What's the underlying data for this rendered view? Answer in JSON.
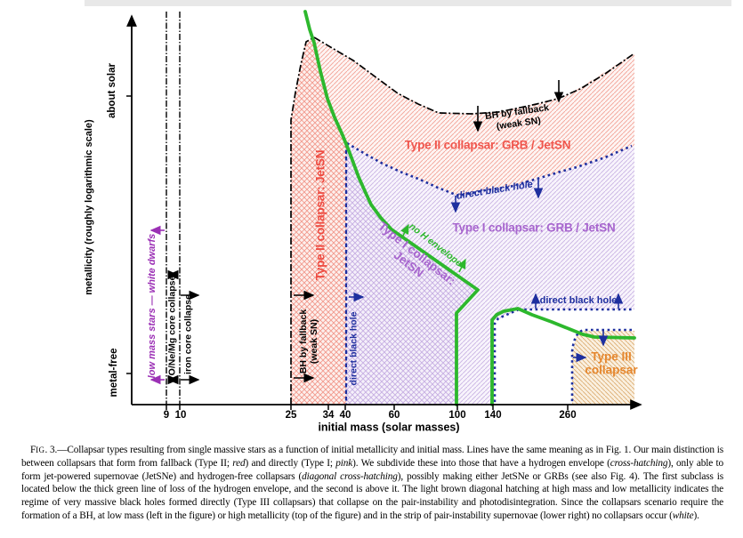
{
  "figure": {
    "x_axis": {
      "label": "initial mass (solar masses)",
      "ticks": [
        "9",
        "10",
        "25",
        "34",
        "40",
        "60",
        "100",
        "140",
        "260"
      ]
    },
    "y_axis": {
      "label": "metallicity (roughly logarithmic scale)",
      "top": "about solar",
      "bottom": "metal-free"
    },
    "labels": {
      "low_mass_stars": "low mass stars — white dwarfs",
      "onemg_core": "O/Ne/Mg core collapse",
      "iron_core": "iron core collapse",
      "bh_fallback_line1": "BH by fallback",
      "bh_fallback_line2": "(weak SN)",
      "type2_jetsn": "Type II collapsar: JetSN",
      "direct_black_hole": "direct black hole",
      "type2_grb_jetsn": "Type II collapsar: GRB / JetSN",
      "type1_grb_jetsn": "Type I collapsar: GRB / JetSN",
      "type1_jetsn_line1": "Type I collapsar:",
      "type1_jetsn_line2": "JetSN",
      "no_h_envelope": "no H envelope",
      "type3_line1": "Type III",
      "type3_line2": "collapsar"
    },
    "colors": {
      "green_line": "#2db82d",
      "blue": "#1e2f9f",
      "red_text": "#ee4b41",
      "red_hatch": "#f2998c",
      "purple_text": "#a765ce",
      "purple_hatch": "#c6aee2",
      "magenta_text": "#9b30b5",
      "tan_hatch": "#dcae72",
      "orange_text": "#e6872e",
      "black": "#000000"
    }
  },
  "caption": {
    "segments": [
      {
        "t": "F"
      },
      {
        "t": "IG",
        "sc": true
      },
      {
        "t": ". 3.—Collapsar types resulting from single massive stars as a function of initial metallicity and initial mass. Lines have the same meaning as in Fig. 1. Our main distinction is between collapsars that form from fallback (Type II; "
      },
      {
        "t": "red",
        "i": true
      },
      {
        "t": ") and directly (Type I; "
      },
      {
        "t": "pink",
        "i": true
      },
      {
        "t": "). We subdivide these into those that have a hydrogen envelope ("
      },
      {
        "t": "cross-hatching",
        "i": true
      },
      {
        "t": "), only able to form jet-powered supernovae (JetSNe) and hydrogen-free collapsars ("
      },
      {
        "t": "diagonal cross-hatching",
        "i": true
      },
      {
        "t": "), possibly making either JetSNe or GRBs (see also Fig. 4). The first subclass is located below the thick green line of loss of the hydrogen envelope, and the second is above it. The light brown diagonal hatching at high mass and low metallicity indicates the regime of very massive black holes formed directly (Type III collapsars) that collapse on the pair-instability and photodisintegration. Since the collapsars scenario require the formation of a BH, at low mass (left in the figure) or high metallicity (top of the figure) and in the strip of pair-instability supernovae (lower right) no collapsars occur ("
      },
      {
        "t": "white",
        "i": true
      },
      {
        "t": ")."
      }
    ]
  }
}
